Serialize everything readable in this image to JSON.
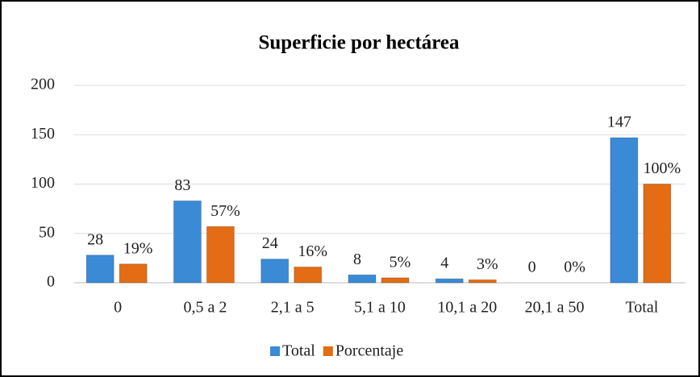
{
  "chart_data": {
    "type": "bar",
    "title": "Superficie por hectárea",
    "categories": [
      "0",
      "0,5 a 2",
      "2,1 a 5",
      "5,1 a 10",
      "10,1 a 20",
      "20,1 a 50",
      "Total"
    ],
    "series": [
      {
        "name": "Total",
        "color": "#3a8ad6",
        "values": [
          28,
          83,
          24,
          8,
          4,
          0,
          147
        ]
      },
      {
        "name": "Porcentaje",
        "color": "#e36c14",
        "values": [
          19,
          57,
          16,
          5,
          3,
          0,
          100
        ],
        "value_labels": [
          "19%",
          "57%",
          "16%",
          "5%",
          "3%",
          "0%",
          "100%"
        ]
      }
    ],
    "ylim": [
      0,
      200
    ],
    "yticks": [
      0,
      50,
      100,
      150,
      200
    ],
    "grid": true,
    "legend": "bottom"
  }
}
